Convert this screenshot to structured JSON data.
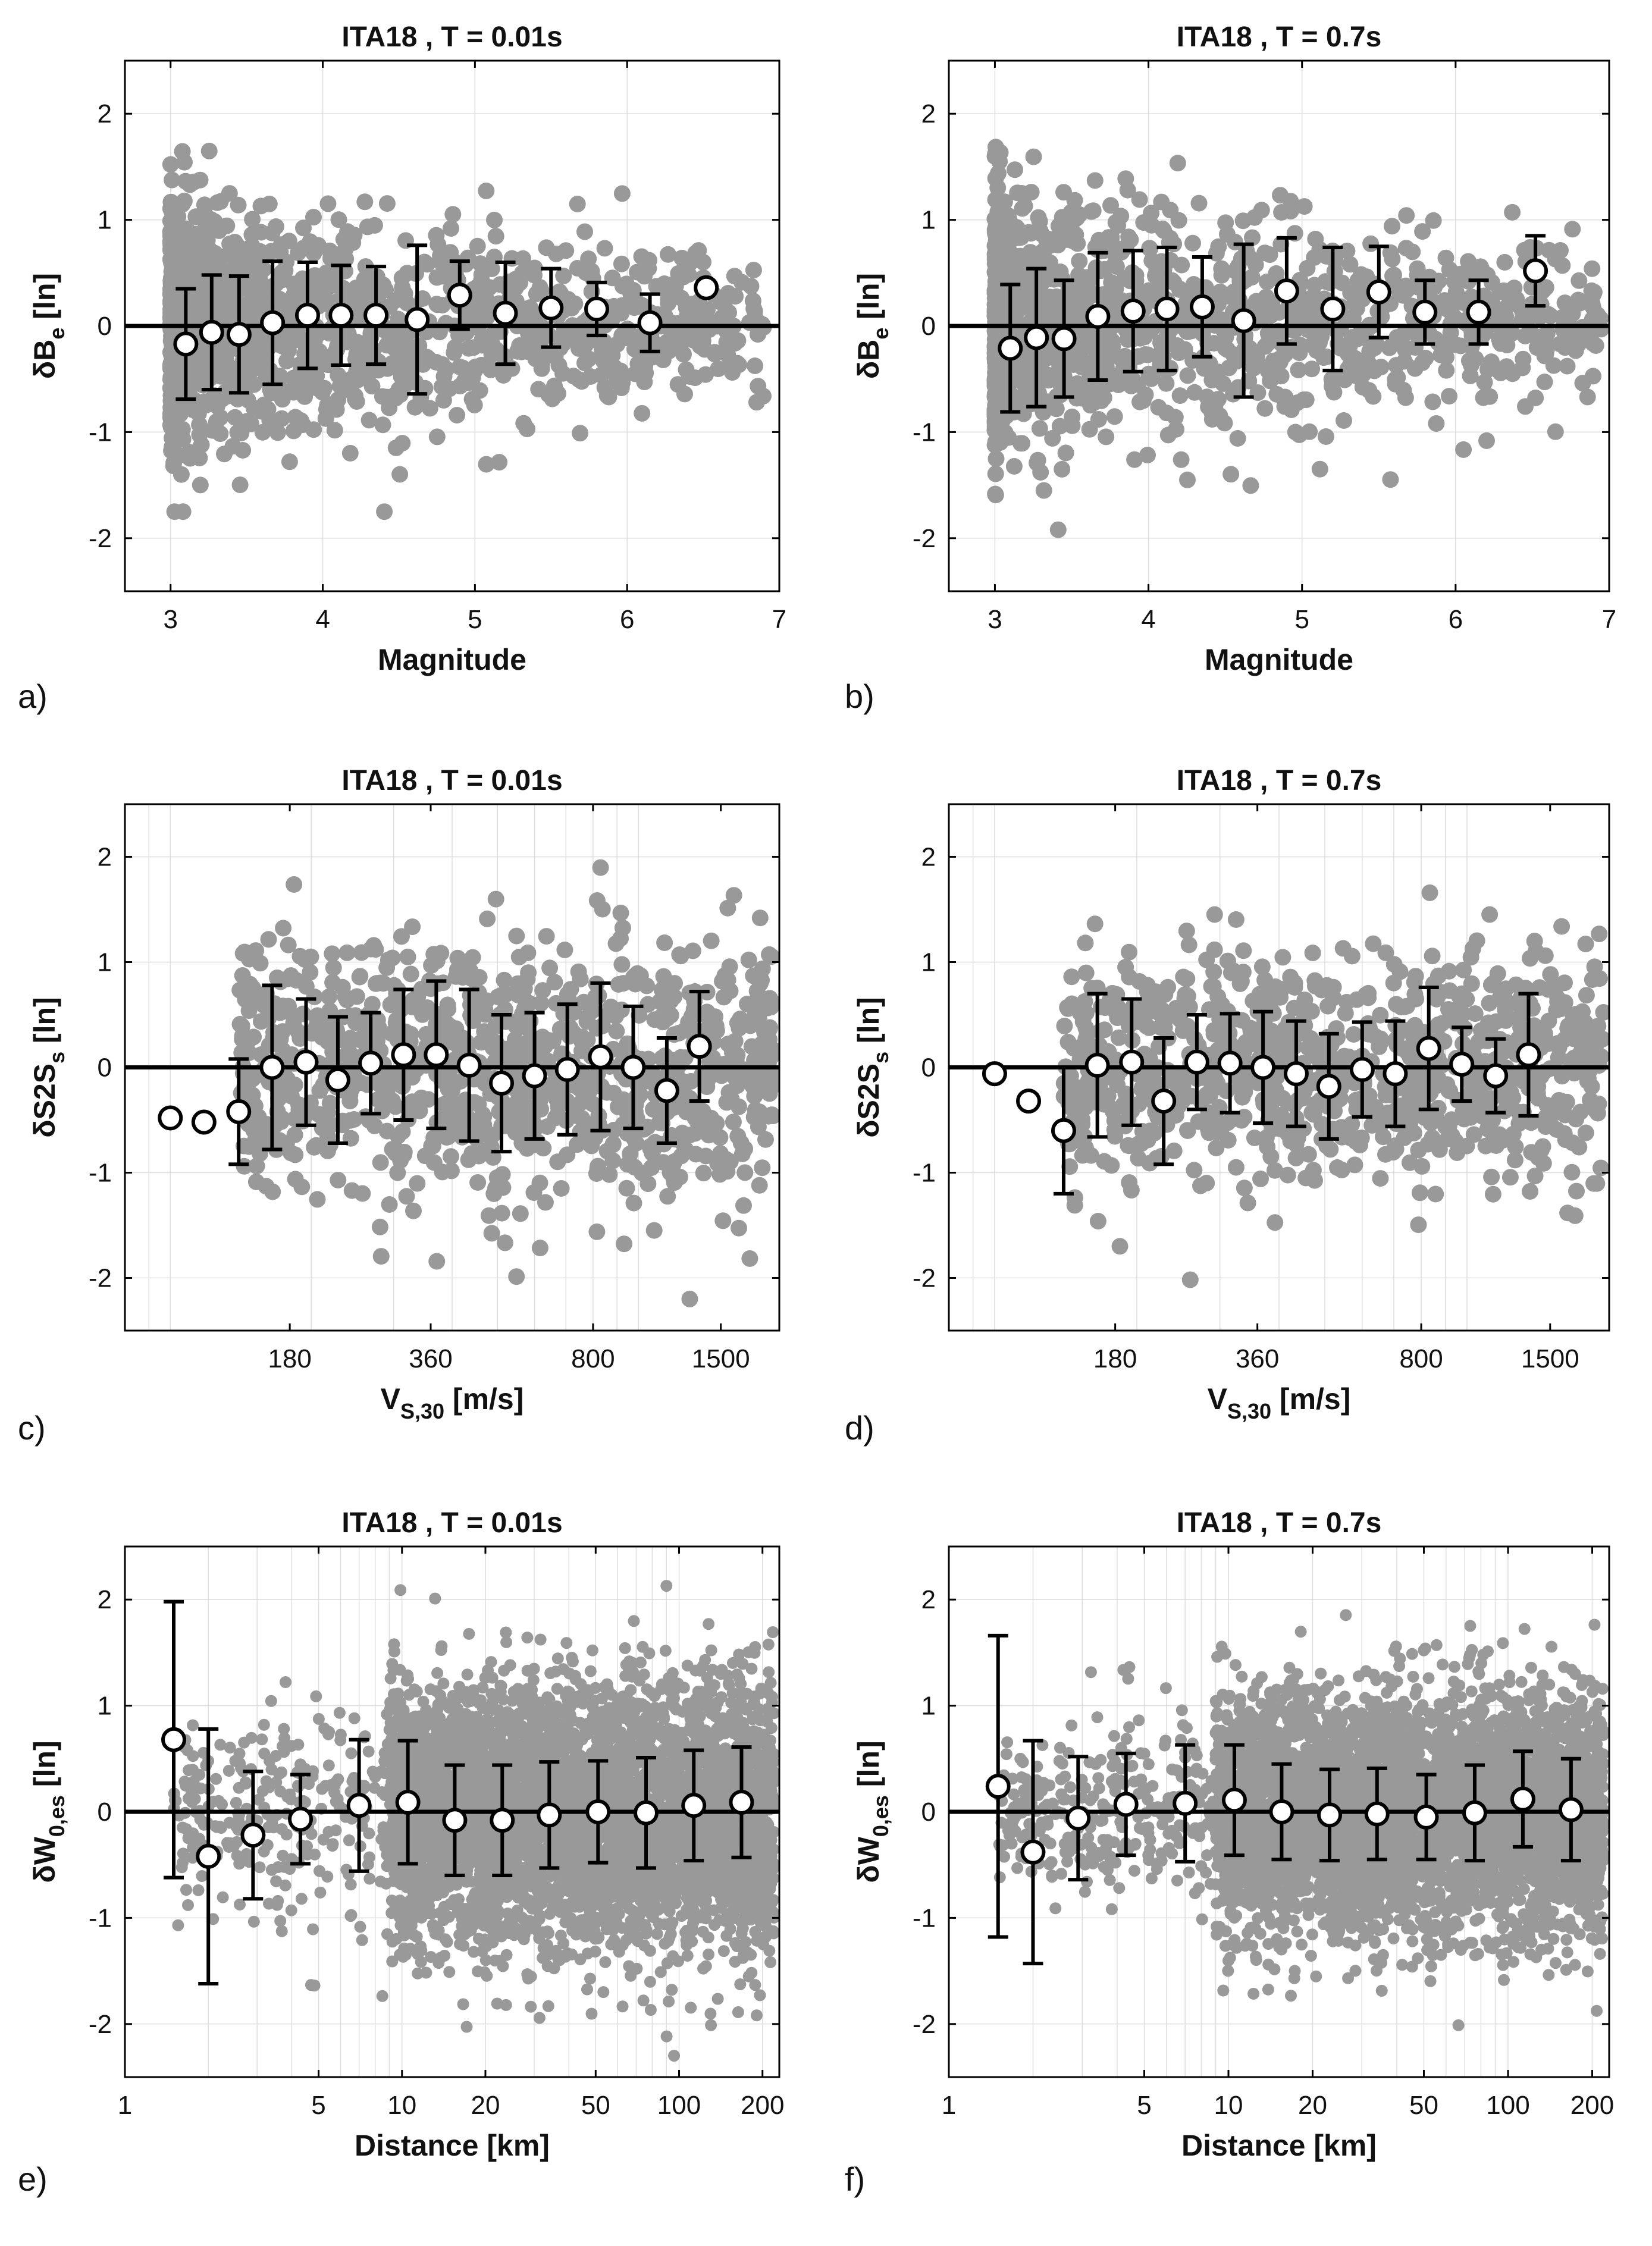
{
  "figure": {
    "colors": {
      "scatter": "#999999",
      "marker_fill": "#ffffff",
      "line": "#000000",
      "grid": "#dddddd"
    }
  },
  "chart_data": [
    {
      "id": "a",
      "panel_label": "a)",
      "type": "scatter",
      "title": "ITA18 , T = 0.01s",
      "xlabel": "Magnitude",
      "ylabel_main": "δB",
      "ylabel_sub": "e",
      "ylabel_tail": " [ln]",
      "xscale": "linear",
      "xlim": [
        2.7,
        7
      ],
      "ylim": [
        -2.5,
        2.5
      ],
      "xticks": [
        3,
        4,
        5,
        6,
        7
      ],
      "xticklabels": [
        "3",
        "4",
        "5",
        "6",
        "7"
      ],
      "yticks": [
        -2,
        -1,
        0,
        1,
        2
      ],
      "yticklabels": [
        "-2",
        "-1",
        "0",
        "1",
        "2"
      ],
      "scatter_spec": {
        "n": 1300,
        "x_min": 3.0,
        "x_max": 6.9,
        "x_skew": 2.2,
        "std_lo": 0.62,
        "std_hi": 0.28,
        "y_min": -1.75,
        "y_max": 2.35,
        "seed": 11
      },
      "binned_means": {
        "x": [
          3.1,
          3.27,
          3.45,
          3.67,
          3.9,
          4.12,
          4.35,
          4.62,
          4.9,
          5.2,
          5.5,
          5.8,
          6.15,
          6.52
        ],
        "y": [
          -0.17,
          -0.06,
          -0.08,
          0.03,
          0.1,
          0.1,
          0.1,
          0.06,
          0.29,
          0.12,
          0.17,
          0.16,
          0.03,
          0.36
        ],
        "err": [
          0.52,
          0.54,
          0.55,
          0.58,
          0.5,
          0.47,
          0.46,
          0.7,
          0.32,
          0.48,
          0.37,
          0.25,
          0.27,
          0.0
        ]
      }
    },
    {
      "id": "b",
      "panel_label": "b)",
      "type": "scatter",
      "title": "ITA18 , T = 0.7s",
      "xlabel": "Magnitude",
      "ylabel_main": "δB",
      "ylabel_sub": "e",
      "ylabel_tail": " [ln]",
      "xscale": "linear",
      "xlim": [
        2.7,
        7
      ],
      "ylim": [
        -2.5,
        2.5
      ],
      "xticks": [
        3,
        4,
        5,
        6,
        7
      ],
      "xticklabels": [
        "3",
        "4",
        "5",
        "6",
        "7"
      ],
      "yticks": [
        -2,
        -1,
        0,
        1,
        2
      ],
      "yticklabels": [
        "-2",
        "-1",
        "0",
        "1",
        "2"
      ],
      "scatter_spec": {
        "n": 1300,
        "x_min": 3.0,
        "x_max": 6.95,
        "x_skew": 2.2,
        "std_lo": 0.62,
        "std_hi": 0.32,
        "y_min": -2.05,
        "y_max": 2.2,
        "seed": 23
      },
      "binned_means": {
        "x": [
          3.1,
          3.27,
          3.45,
          3.67,
          3.9,
          4.12,
          4.35,
          4.62,
          4.9,
          5.2,
          5.5,
          5.8,
          6.15,
          6.52
        ],
        "y": [
          -0.21,
          -0.11,
          -0.12,
          0.09,
          0.14,
          0.16,
          0.18,
          0.05,
          0.33,
          0.16,
          0.32,
          0.13,
          0.13,
          0.52
        ],
        "err": [
          0.6,
          0.65,
          0.55,
          0.6,
          0.57,
          0.58,
          0.47,
          0.72,
          0.5,
          0.58,
          0.43,
          0.3,
          0.3,
          0.33
        ]
      }
    },
    {
      "id": "c",
      "panel_label": "c)",
      "type": "scatter",
      "title": "ITA18 , T = 0.01s",
      "xlabel_main": "V",
      "xlabel_sub": "S,30",
      "xlabel_tail": " [m/s]",
      "ylabel_main": "δS2S",
      "ylabel_sub": "s",
      "ylabel_tail": " [ln]",
      "xscale": "log",
      "xlim": [
        80,
        2000
      ],
      "ylim": [
        -2.5,
        2.5
      ],
      "xticks": [
        180,
        360,
        800,
        1500
      ],
      "xticklabels": [
        "180",
        "360",
        "800",
        "1500"
      ],
      "yticks": [
        -2,
        -1,
        0,
        1,
        2
      ],
      "yticklabels": [
        "-2",
        "-1",
        "0",
        "1",
        "2"
      ],
      "scatter_spec": {
        "n": 1000,
        "x_min": 140,
        "x_max": 1950,
        "std": 0.62,
        "y_min": -2.2,
        "y_max": 2.15,
        "seed": 37
      },
      "binned_means": {
        "x": [
          100,
          118,
          140,
          165,
          195,
          228,
          268,
          315,
          370,
          435,
          510,
          600,
          705,
          830,
          975,
          1150,
          1350,
          1600,
          1880
        ],
        "y": [
          -0.48,
          -0.52,
          -0.42,
          0.0,
          0.05,
          -0.12,
          0.04,
          0.12,
          0.12,
          0.02,
          -0.15,
          -0.08,
          -0.02,
          0.1,
          0.0,
          -0.22,
          0.2,
          null,
          null
        ],
        "err": [
          0.0,
          0.0,
          0.5,
          0.78,
          0.6,
          0.6,
          0.48,
          0.62,
          0.7,
          0.72,
          0.65,
          0.6,
          0.62,
          0.7,
          0.58,
          0.5,
          0.52,
          null,
          null
        ]
      }
    },
    {
      "id": "d",
      "panel_label": "d)",
      "type": "scatter",
      "title": "ITA18 , T = 0.7s",
      "xlabel_main": "V",
      "xlabel_sub": "S,30",
      "xlabel_tail": " [m/s]",
      "ylabel_main": "δS2S",
      "ylabel_sub": "s",
      "ylabel_tail": " [ln]",
      "xscale": "log",
      "xlim": [
        80,
        2000
      ],
      "ylim": [
        -2.5,
        2.5
      ],
      "xticks": [
        180,
        360,
        800,
        1500
      ],
      "xticklabels": [
        "180",
        "360",
        "800",
        "1500"
      ],
      "yticks": [
        -2,
        -1,
        0,
        1,
        2
      ],
      "yticklabels": [
        "-2",
        "-1",
        "0",
        "1",
        "2"
      ],
      "scatter_spec": {
        "n": 950,
        "x_min": 140,
        "x_max": 1950,
        "std": 0.55,
        "y_min": -2.25,
        "y_max": 2.15,
        "seed": 41
      },
      "binned_means": {
        "x": [
          100,
          118,
          140,
          165,
          195,
          228,
          268,
          315,
          370,
          435,
          510,
          600,
          705,
          830,
          975,
          1150,
          1350,
          1600,
          1880
        ],
        "y": [
          -0.06,
          -0.32,
          -0.6,
          0.02,
          0.05,
          -0.32,
          0.05,
          0.04,
          0.0,
          -0.06,
          -0.18,
          -0.02,
          -0.06,
          0.18,
          0.03,
          -0.08,
          0.12,
          null,
          null
        ],
        "err": [
          0.0,
          0.0,
          0.6,
          0.68,
          0.6,
          0.6,
          0.45,
          0.47,
          0.53,
          0.5,
          0.5,
          0.45,
          0.5,
          0.58,
          0.35,
          0.35,
          0.58,
          null,
          null
        ]
      }
    },
    {
      "id": "e",
      "panel_label": "e)",
      "type": "scatter",
      "title": "ITA18 , T = 0.01s",
      "xlabel": "Distance [km]",
      "ylabel_main": "δW",
      "ylabel_sub": "0,es",
      "ylabel_tail": " [ln]",
      "xscale": "log",
      "xlim": [
        1,
        230
      ],
      "ylim": [
        -2.5,
        2.5
      ],
      "xticks": [
        1,
        5,
        10,
        20,
        50,
        100,
        200
      ],
      "xticklabels": [
        "1",
        "5",
        "10",
        "20",
        "50",
        "100",
        "200"
      ],
      "yticks": [
        -2,
        -1,
        0,
        1,
        2
      ],
      "yticklabels": [
        "-2",
        "-1",
        "0",
        "1",
        "2"
      ],
      "scatter_spec": {
        "n": 5000,
        "x_min": 1.5,
        "x_max": 220,
        "dense_start": 9,
        "std": 0.62,
        "y_min": -2.4,
        "y_max": 2.45,
        "seed": 53
      },
      "binned_means": {
        "x": [
          1.5,
          2.0,
          2.9,
          4.3,
          7.0,
          10.5,
          15.5,
          23.0,
          34.0,
          51.0,
          76.0,
          113.0,
          168.0
        ],
        "y": [
          0.68,
          -0.42,
          -0.22,
          -0.07,
          0.06,
          0.09,
          -0.08,
          -0.08,
          -0.03,
          0.0,
          -0.01,
          0.06,
          0.09
        ],
        "err": [
          1.3,
          1.2,
          0.6,
          0.42,
          0.62,
          0.58,
          0.52,
          0.52,
          0.5,
          0.48,
          0.52,
          0.52,
          0.52
        ]
      }
    },
    {
      "id": "f",
      "panel_label": "f)",
      "type": "scatter",
      "title": "ITA18 , T = 0.7s",
      "xlabel": "Distance [km]",
      "ylabel_main": "δW",
      "ylabel_sub": "0,es",
      "ylabel_tail": " [ln]",
      "xscale": "log",
      "xlim": [
        1,
        230
      ],
      "ylim": [
        -2.5,
        2.5
      ],
      "xticks": [
        1,
        5,
        10,
        20,
        50,
        100,
        200
      ],
      "xticklabels": [
        "1",
        "5",
        "10",
        "20",
        "50",
        "100",
        "200"
      ],
      "yticks": [
        -2,
        -1,
        0,
        1,
        2
      ],
      "yticklabels": [
        "-2",
        "-1",
        "0",
        "1",
        "2"
      ],
      "scatter_spec": {
        "n": 5000,
        "x_min": 1.5,
        "x_max": 220,
        "dense_start": 9,
        "std": 0.55,
        "y_min": -2.4,
        "y_max": 2.2,
        "seed": 67
      },
      "binned_means": {
        "x": [
          1.5,
          2.0,
          2.9,
          4.3,
          7.0,
          10.5,
          15.5,
          23.0,
          34.0,
          51.0,
          76.0,
          113.0,
          168.0
        ],
        "y": [
          0.24,
          -0.38,
          -0.06,
          0.07,
          0.08,
          0.11,
          0.0,
          -0.03,
          -0.02,
          -0.05,
          -0.01,
          0.12,
          0.02
        ],
        "err": [
          1.42,
          1.05,
          0.58,
          0.48,
          0.55,
          0.52,
          0.45,
          0.43,
          0.43,
          0.4,
          0.45,
          0.45,
          0.48
        ]
      }
    }
  ]
}
